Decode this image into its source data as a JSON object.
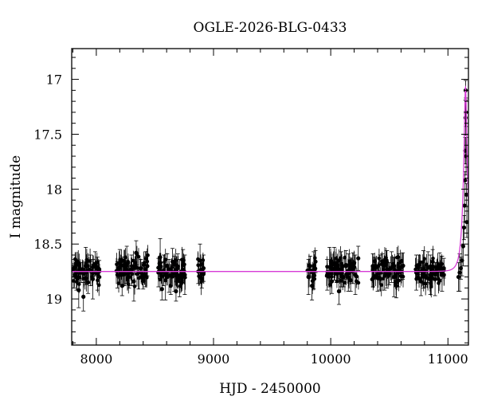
{
  "chart_data": {
    "type": "scatter",
    "title": "OGLE-2026-BLG-0433",
    "xlabel": "HJD - 2450000",
    "ylabel": "I magnitude",
    "xlim": [
      7790,
      11175
    ],
    "ylim": [
      19.42,
      16.72
    ],
    "y_inverted": true,
    "x_ticks": [
      8000,
      9000,
      10000,
      11000
    ],
    "x_tick_labels": [
      "8000",
      "9000",
      "10000",
      "11000"
    ],
    "y_ticks": [
      17,
      17.5,
      18,
      18.5,
      19
    ],
    "y_tick_labels": [
      "17",
      "17.5",
      "18",
      "18.5",
      "19"
    ],
    "grid": false,
    "colors": {
      "points": "#000000",
      "model": "#d63bd6"
    },
    "baseline_magnitude": 18.75,
    "peak": {
      "t0": 11150,
      "magnitude": 17.07
    },
    "observing_seasons": [
      {
        "start": 7800,
        "end": 8030
      },
      {
        "start": 8170,
        "end": 8440
      },
      {
        "start": 8520,
        "end": 8760
      },
      {
        "start": 8860,
        "end": 8920
      },
      {
        "start": 9800,
        "end": 9880
      },
      {
        "start": 9960,
        "end": 10240
      },
      {
        "start": 10350,
        "end": 10620
      },
      {
        "start": 10720,
        "end": 10970
      },
      {
        "start": 11080,
        "end": 11165
      }
    ],
    "series": [
      {
        "name": "",
        "points": [
          [
            7810,
            18.72
          ],
          [
            7830,
            18.8
          ],
          [
            7850,
            18.92
          ],
          [
            7870,
            18.76
          ],
          [
            7890,
            18.98
          ],
          [
            7910,
            18.7
          ],
          [
            7930,
            18.85
          ],
          [
            7950,
            18.74
          ],
          [
            7970,
            18.82
          ],
          [
            7990,
            18.68
          ],
          [
            8010,
            18.77
          ],
          [
            8025,
            18.73
          ],
          [
            8180,
            18.78
          ],
          [
            8200,
            18.71
          ],
          [
            8220,
            18.88
          ],
          [
            8240,
            18.75
          ],
          [
            8260,
            18.69
          ],
          [
            8280,
            18.8
          ],
          [
            8300,
            18.74
          ],
          [
            8320,
            18.84
          ],
          [
            8340,
            18.58
          ],
          [
            8360,
            18.76
          ],
          [
            8380,
            18.72
          ],
          [
            8400,
            18.79
          ],
          [
            8420,
            18.73
          ],
          [
            8435,
            18.7
          ],
          [
            8530,
            18.76
          ],
          [
            8545,
            18.62
          ],
          [
            8560,
            18.91
          ],
          [
            8575,
            18.74
          ],
          [
            8590,
            18.83
          ],
          [
            8605,
            18.7
          ],
          [
            8620,
            18.79
          ],
          [
            8635,
            18.88
          ],
          [
            8650,
            18.66
          ],
          [
            8665,
            18.77
          ],
          [
            8680,
            18.93
          ],
          [
            8695,
            18.72
          ],
          [
            8710,
            18.81
          ],
          [
            8725,
            18.75
          ],
          [
            8740,
            18.69
          ],
          [
            8755,
            18.78
          ],
          [
            8870,
            18.75
          ],
          [
            8885,
            18.65
          ],
          [
            8900,
            18.82
          ],
          [
            8915,
            18.72
          ],
          [
            9810,
            18.8
          ],
          [
            9825,
            18.7
          ],
          [
            9840,
            18.88
          ],
          [
            9855,
            18.74
          ],
          [
            9870,
            18.66
          ],
          [
            9970,
            18.78
          ],
          [
            9990,
            18.71
          ],
          [
            10010,
            18.84
          ],
          [
            10030,
            18.68
          ],
          [
            10050,
            18.77
          ],
          [
            10070,
            18.93
          ],
          [
            10090,
            18.73
          ],
          [
            10110,
            18.8
          ],
          [
            10130,
            18.69
          ],
          [
            10150,
            18.76
          ],
          [
            10170,
            18.83
          ],
          [
            10190,
            18.72
          ],
          [
            10210,
            18.78
          ],
          [
            10235,
            18.63
          ],
          [
            10360,
            18.74
          ],
          [
            10380,
            18.7
          ],
          [
            10400,
            18.81
          ],
          [
            10420,
            18.76
          ],
          [
            10440,
            18.68
          ],
          [
            10460,
            18.79
          ],
          [
            10480,
            18.73
          ],
          [
            10500,
            18.77
          ],
          [
            10520,
            18.71
          ],
          [
            10540,
            18.8
          ],
          [
            10560,
            18.88
          ],
          [
            10580,
            18.74
          ],
          [
            10600,
            18.75
          ],
          [
            10615,
            18.7
          ],
          [
            10730,
            18.76
          ],
          [
            10750,
            18.69
          ],
          [
            10770,
            18.84
          ],
          [
            10790,
            18.73
          ],
          [
            10810,
            18.79
          ],
          [
            10830,
            18.71
          ],
          [
            10850,
            18.78
          ],
          [
            10870,
            18.66
          ],
          [
            10890,
            18.82
          ],
          [
            10910,
            18.75
          ],
          [
            10930,
            18.7
          ],
          [
            10950,
            18.77
          ],
          [
            10965,
            18.72
          ],
          [
            11090,
            18.8
          ],
          [
            11100,
            18.76
          ],
          [
            11110,
            18.72
          ],
          [
            11120,
            18.65
          ],
          [
            11130,
            18.52
          ],
          [
            11138,
            18.35
          ],
          [
            11142,
            18.15
          ],
          [
            11146,
            17.92
          ],
          [
            11148,
            17.65
          ],
          [
            11150,
            17.35
          ],
          [
            11151,
            17.1
          ],
          [
            11153,
            17.3
          ],
          [
            11155,
            17.7
          ],
          [
            11158,
            18.05
          ],
          [
            11161,
            18.3
          ]
        ]
      }
    ]
  }
}
